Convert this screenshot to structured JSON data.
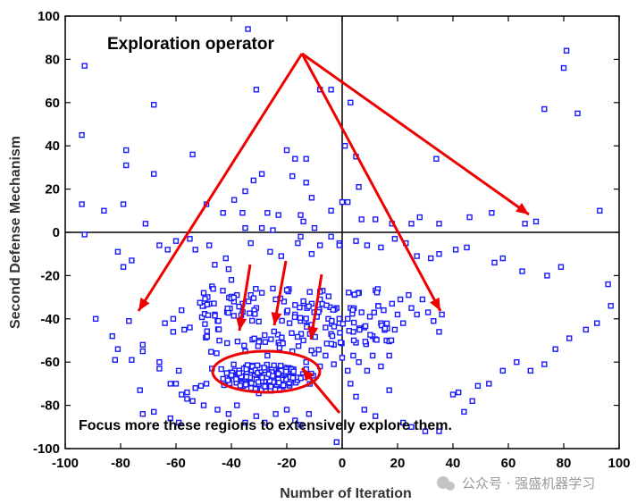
{
  "chart_data": {
    "type": "scatter",
    "title": "",
    "xlabel": "Number of Iteration",
    "ylabel": "Second Defense Mechanism",
    "xlim": [
      -100,
      100
    ],
    "ylim": [
      -100,
      100
    ],
    "xticks": [
      "-100",
      "-80",
      "-60",
      "-40",
      "-20",
      "0",
      "20",
      "40",
      "60",
      "80",
      "100"
    ],
    "yticks": [
      "-100",
      "-80",
      "-60",
      "-40",
      "-20",
      "0",
      "20",
      "40",
      "60",
      "80",
      "100"
    ],
    "grid": false,
    "zero_lines": true,
    "marker": "square",
    "marker_color": "#1a1aff",
    "annotation_color": "#ee0000",
    "annotations": {
      "top": "Exploration operator",
      "bottom": "Focus more these regions to extensively explore them."
    },
    "series": [
      {
        "points": [
          [
            -93,
            77
          ],
          [
            -34,
            94
          ],
          [
            -31,
            66
          ],
          [
            -68,
            59
          ],
          [
            -94,
            45
          ],
          [
            -78,
            38
          ],
          [
            -78,
            31
          ],
          [
            -68,
            27
          ],
          [
            -54,
            36
          ],
          [
            -35,
            19
          ],
          [
            -32,
            24
          ],
          [
            -29,
            27
          ],
          [
            -20,
            38
          ],
          [
            -17,
            34
          ],
          [
            -13,
            34
          ],
          [
            -13,
            23
          ],
          [
            -11,
            16
          ],
          [
            -18,
            26
          ],
          [
            -8,
            66
          ],
          [
            -4,
            66
          ],
          [
            3,
            60
          ],
          [
            5,
            35
          ],
          [
            1,
            40
          ],
          [
            6,
            21
          ],
          [
            0,
            14
          ],
          [
            2,
            14
          ],
          [
            -94,
            13
          ],
          [
            -86,
            10
          ],
          [
            -79,
            13
          ],
          [
            -71,
            4
          ],
          [
            -49,
            13
          ],
          [
            -39,
            15
          ],
          [
            -27,
            9
          ],
          [
            -36,
            9
          ],
          [
            -43,
            9
          ],
          [
            -23,
            8
          ],
          [
            -35,
            2
          ],
          [
            -29,
            2
          ],
          [
            -25,
            1
          ],
          [
            -15,
            8
          ],
          [
            -14,
            5
          ],
          [
            -10,
            2
          ],
          [
            -4,
            10
          ],
          [
            -1,
            -5
          ],
          [
            7,
            6
          ],
          [
            12,
            6
          ],
          [
            18,
            4
          ],
          [
            25,
            4
          ],
          [
            28,
            7
          ],
          [
            34,
            34
          ],
          [
            35,
            4
          ],
          [
            46,
            7
          ],
          [
            54,
            9
          ],
          [
            66,
            4
          ],
          [
            70,
            5
          ],
          [
            73,
            57
          ],
          [
            80,
            76
          ],
          [
            81,
            84
          ],
          [
            85,
            55
          ],
          [
            93,
            10
          ],
          [
            -93,
            -1
          ],
          [
            -81,
            -9
          ],
          [
            -79,
            -16
          ],
          [
            -76,
            -13
          ],
          [
            -66,
            -6
          ],
          [
            -63,
            -8
          ],
          [
            -60,
            -4
          ],
          [
            -55,
            -3
          ],
          [
            -53,
            -8
          ],
          [
            -48,
            -6
          ],
          [
            -46,
            -15
          ],
          [
            -42,
            -12
          ],
          [
            -41,
            -17
          ],
          [
            -33,
            -5
          ],
          [
            -26,
            -9
          ],
          [
            -22,
            -11
          ],
          [
            -16,
            -5
          ],
          [
            -15,
            -2
          ],
          [
            -11,
            -10
          ],
          [
            -8,
            -6
          ],
          [
            -4,
            -2
          ],
          [
            -1,
            -6
          ],
          [
            5,
            -4
          ],
          [
            9,
            -6
          ],
          [
            14,
            -7
          ],
          [
            19,
            -3
          ],
          [
            23,
            -5
          ],
          [
            27,
            -11
          ],
          [
            32,
            -12
          ],
          [
            35,
            -10
          ],
          [
            41,
            -8
          ],
          [
            45,
            -7
          ],
          [
            55,
            -14
          ],
          [
            58,
            -12
          ],
          [
            65,
            -18
          ],
          [
            74,
            -20
          ],
          [
            79,
            -16
          ],
          [
            96,
            -24
          ],
          [
            97,
            -34
          ],
          [
            -89,
            -40
          ],
          [
            -83,
            -48
          ],
          [
            -81,
            -54
          ],
          [
            -77,
            -41
          ],
          [
            -72,
            -52
          ],
          [
            -76,
            -59
          ],
          [
            -82,
            -59
          ],
          [
            -72,
            -55
          ],
          [
            -66,
            -63
          ],
          [
            -66,
            -60
          ],
          [
            -62,
            -70
          ],
          [
            -60,
            -70
          ],
          [
            -59,
            -64
          ],
          [
            -58,
            -75
          ],
          [
            -56,
            -74
          ],
          [
            -53,
            -72
          ],
          [
            -51,
            -71
          ],
          [
            -49,
            -70
          ],
          [
            -47,
            -63
          ],
          [
            -55,
            -44
          ],
          [
            -57,
            -45
          ],
          [
            -61,
            -46
          ],
          [
            -61,
            -40
          ],
          [
            -64,
            -42
          ],
          [
            -58,
            -36
          ],
          [
            -50,
            -34
          ],
          [
            -45,
            -41
          ],
          [
            -46,
            -38
          ],
          [
            -48,
            -33
          ],
          [
            -47,
            -25
          ],
          [
            -50,
            -28
          ],
          [
            -40,
            -22
          ],
          [
            -38,
            -29
          ],
          [
            -36,
            -33
          ],
          [
            -33,
            -29
          ],
          [
            -31,
            -35
          ],
          [
            -29,
            -28
          ],
          [
            -25,
            -26
          ],
          [
            -24,
            -31
          ],
          [
            -21,
            -32
          ],
          [
            -20,
            -37
          ],
          [
            -19,
            -42
          ],
          [
            -17,
            -38
          ],
          [
            -15,
            -41
          ],
          [
            -12,
            -43
          ],
          [
            -11,
            -33
          ],
          [
            -9,
            -37
          ],
          [
            -8,
            -31
          ],
          [
            -7,
            -27
          ],
          [
            -6,
            -44
          ],
          [
            -5,
            -40
          ],
          [
            -4,
            -47
          ],
          [
            -3,
            -52
          ],
          [
            -2,
            -35
          ],
          [
            -1,
            -42
          ],
          [
            2,
            -40
          ],
          [
            3,
            -35
          ],
          [
            4,
            -46
          ],
          [
            5,
            -51
          ],
          [
            7,
            -37
          ],
          [
            8,
            -44
          ],
          [
            10,
            -39
          ],
          [
            11,
            -48
          ],
          [
            13,
            -34
          ],
          [
            14,
            -42
          ],
          [
            15,
            -36
          ],
          [
            16,
            -50
          ],
          [
            18,
            -33
          ],
          [
            19,
            -45
          ],
          [
            20,
            -38
          ],
          [
            21,
            -31
          ],
          [
            22,
            -42
          ],
          [
            24,
            -29
          ],
          [
            25,
            -35
          ],
          [
            27,
            -38
          ],
          [
            29,
            -31
          ],
          [
            31,
            -37
          ],
          [
            33,
            -41
          ],
          [
            35,
            -46
          ],
          [
            36,
            -38
          ],
          [
            -35,
            -55
          ],
          [
            -30,
            -50
          ],
          [
            -27,
            -57
          ],
          [
            -23,
            -51
          ],
          [
            -18,
            -55
          ],
          [
            -13,
            -60
          ],
          [
            -10,
            -56
          ],
          [
            -8,
            -62
          ],
          [
            -6,
            -57
          ],
          [
            -3,
            -61
          ],
          [
            0,
            -58
          ],
          [
            2,
            -64
          ],
          [
            4,
            -57
          ],
          [
            6,
            -60
          ],
          [
            9,
            -64
          ],
          [
            11,
            -57
          ],
          [
            14,
            -62
          ],
          [
            17,
            -57
          ],
          [
            3,
            -70
          ],
          [
            5,
            -76
          ],
          [
            8,
            -82
          ],
          [
            12,
            -85
          ],
          [
            17,
            -73
          ],
          [
            22,
            -88
          ],
          [
            25,
            -90
          ],
          [
            30,
            -92
          ],
          [
            35,
            -92
          ],
          [
            40,
            -75
          ],
          [
            42,
            -74
          ],
          [
            44,
            -83
          ],
          [
            47,
            -78
          ],
          [
            49,
            -71
          ],
          [
            53,
            -70
          ],
          [
            58,
            -64
          ],
          [
            63,
            -60
          ],
          [
            68,
            -64
          ],
          [
            73,
            -61
          ],
          [
            77,
            -54
          ],
          [
            82,
            -49
          ],
          [
            88,
            -45
          ],
          [
            92,
            -42
          ],
          [
            -2,
            -97
          ],
          [
            -73,
            -73
          ],
          [
            -72,
            -84
          ],
          [
            -68,
            -83
          ],
          [
            -62,
            -86
          ],
          [
            -59,
            -88
          ],
          [
            -56,
            -77
          ],
          [
            -54,
            -78
          ],
          [
            -50,
            -80
          ],
          [
            -45,
            -82
          ],
          [
            -41,
            -84
          ],
          [
            -38,
            -80
          ],
          [
            -35,
            -88
          ],
          [
            -31,
            -85
          ],
          [
            -28,
            -88
          ],
          [
            -24,
            -84
          ],
          [
            -20,
            -82
          ],
          [
            -17,
            -87
          ],
          [
            -15,
            -89
          ],
          [
            -12,
            -84
          ]
        ],
        "cluster": {
          "center": [
            -28,
            -67
          ],
          "spread": [
            12,
            5
          ],
          "count": 260
        }
      }
    ]
  },
  "watermark": "公众号 · 强盛机器学习"
}
